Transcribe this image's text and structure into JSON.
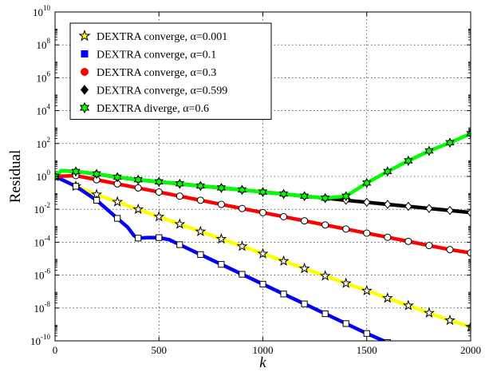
{
  "chart_data": {
    "type": "line",
    "xlabel": "k",
    "ylabel": "Residual",
    "xlim": [
      0,
      2000
    ],
    "ylim_log10": [
      -10,
      10
    ],
    "y_scale": "log",
    "grid": true,
    "legend_position": "top-left",
    "x_ticks": [
      "0",
      "500",
      "1000",
      "1500",
      "2000"
    ],
    "y_ticks": [
      {
        "base": "10",
        "exp": "-10",
        "value": -10
      },
      {
        "base": "10",
        "exp": "-8",
        "value": -8
      },
      {
        "base": "10",
        "exp": "-6",
        "value": -6
      },
      {
        "base": "10",
        "exp": "-4",
        "value": -4
      },
      {
        "base": "10",
        "exp": "-2",
        "value": -2
      },
      {
        "base": "10",
        "exp": "0",
        "value": 0
      },
      {
        "base": "10",
        "exp": "2",
        "value": 2
      },
      {
        "base": "10",
        "exp": "4",
        "value": 4
      },
      {
        "base": "10",
        "exp": "6",
        "value": 6
      },
      {
        "base": "10",
        "exp": "8",
        "value": 8
      },
      {
        "base": "10",
        "exp": "10",
        "value": 10
      }
    ],
    "series": [
      {
        "name": "DEXTRA converge, α=0.001",
        "color": "#ffff00",
        "marker": "star",
        "points": [
          [
            0,
            0
          ],
          [
            100,
            -0.6
          ],
          [
            200,
            -1.1
          ],
          [
            300,
            -1.55
          ],
          [
            400,
            -2.0
          ],
          [
            500,
            -2.45
          ],
          [
            600,
            -2.9
          ],
          [
            700,
            -3.35
          ],
          [
            800,
            -3.8
          ],
          [
            900,
            -4.25
          ],
          [
            1000,
            -4.7
          ],
          [
            1100,
            -5.15
          ],
          [
            1200,
            -5.6
          ],
          [
            1300,
            -6.05
          ],
          [
            1400,
            -6.5
          ],
          [
            1500,
            -6.95
          ],
          [
            1600,
            -7.4
          ],
          [
            1700,
            -7.85
          ],
          [
            1800,
            -8.3
          ],
          [
            1900,
            -8.75
          ],
          [
            2000,
            -9.15
          ]
        ]
      },
      {
        "name": "DEXTRA converge, α=0.1",
        "color": "#0000ff",
        "marker": "square",
        "points": [
          [
            0,
            0
          ],
          [
            100,
            -0.6
          ],
          [
            200,
            -1.45
          ],
          [
            300,
            -2.55
          ],
          [
            350,
            -3.1
          ],
          [
            380,
            -3.6
          ],
          [
            400,
            -3.75
          ],
          [
            450,
            -3.72
          ],
          [
            500,
            -3.72
          ],
          [
            550,
            -3.85
          ],
          [
            600,
            -4.15
          ],
          [
            700,
            -4.75
          ],
          [
            800,
            -5.35
          ],
          [
            900,
            -5.95
          ],
          [
            1000,
            -6.55
          ],
          [
            1100,
            -7.15
          ],
          [
            1200,
            -7.75
          ],
          [
            1300,
            -8.35
          ],
          [
            1400,
            -8.95
          ],
          [
            1500,
            -9.55
          ],
          [
            1600,
            -10.1
          ],
          [
            1650,
            -10.3
          ]
        ]
      },
      {
        "name": "DEXTRA converge, α=0.3",
        "color": "#ff0000",
        "marker": "circle",
        "points": [
          [
            0,
            0
          ],
          [
            100,
            0.05
          ],
          [
            200,
            -0.2
          ],
          [
            300,
            -0.45
          ],
          [
            400,
            -0.7
          ],
          [
            500,
            -0.95
          ],
          [
            600,
            -1.2
          ],
          [
            700,
            -1.45
          ],
          [
            800,
            -1.7
          ],
          [
            900,
            -1.95
          ],
          [
            1000,
            -2.2
          ],
          [
            1100,
            -2.45
          ],
          [
            1200,
            -2.7
          ],
          [
            1300,
            -2.95
          ],
          [
            1400,
            -3.2
          ],
          [
            1500,
            -3.45
          ],
          [
            1600,
            -3.7
          ],
          [
            1700,
            -3.95
          ],
          [
            1800,
            -4.2
          ],
          [
            1900,
            -4.45
          ],
          [
            2000,
            -4.65
          ]
        ]
      },
      {
        "name": "DEXTRA converge, α=0.599",
        "color": "#000000",
        "marker": "diamond",
        "points": [
          [
            0,
            0
          ],
          [
            30,
            0.35
          ],
          [
            100,
            0.3
          ],
          [
            200,
            0.15
          ],
          [
            300,
            -0.05
          ],
          [
            400,
            -0.2
          ],
          [
            500,
            -0.33
          ],
          [
            600,
            -0.45
          ],
          [
            700,
            -0.58
          ],
          [
            800,
            -0.7
          ],
          [
            900,
            -0.82
          ],
          [
            1000,
            -0.95
          ],
          [
            1100,
            -1.07
          ],
          [
            1200,
            -1.2
          ],
          [
            1300,
            -1.32
          ],
          [
            1400,
            -1.45
          ],
          [
            1500,
            -1.57
          ],
          [
            1600,
            -1.7
          ],
          [
            1700,
            -1.82
          ],
          [
            1800,
            -1.95
          ],
          [
            1900,
            -2.07
          ],
          [
            2000,
            -2.2
          ]
        ]
      },
      {
        "name": "DEXTRA diverge, α=0.6",
        "color": "#00ff00",
        "marker": "hexagram",
        "points": [
          [
            0,
            0
          ],
          [
            30,
            0.35
          ],
          [
            100,
            0.3
          ],
          [
            200,
            0.15
          ],
          [
            300,
            -0.05
          ],
          [
            400,
            -0.2
          ],
          [
            500,
            -0.33
          ],
          [
            600,
            -0.45
          ],
          [
            700,
            -0.58
          ],
          [
            800,
            -0.7
          ],
          [
            900,
            -0.82
          ],
          [
            1000,
            -0.95
          ],
          [
            1100,
            -1.07
          ],
          [
            1200,
            -1.2
          ],
          [
            1300,
            -1.32
          ],
          [
            1400,
            -1.2
          ],
          [
            1500,
            -0.4
          ],
          [
            1600,
            0.3
          ],
          [
            1700,
            0.95
          ],
          [
            1800,
            1.55
          ],
          [
            1900,
            2.05
          ],
          [
            2000,
            2.6
          ]
        ]
      }
    ]
  }
}
